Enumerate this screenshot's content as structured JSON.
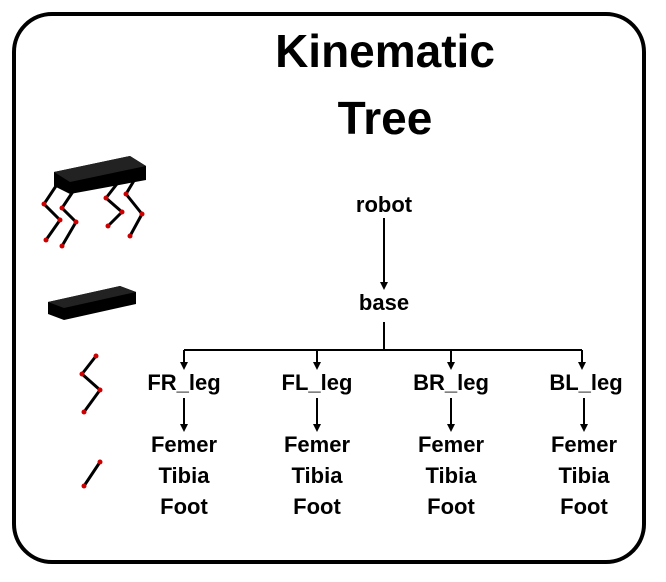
{
  "title": {
    "line1": "Kinematic",
    "line2": "Tree"
  },
  "tree": {
    "root": "robot",
    "base": "base",
    "legs": [
      {
        "name": "FR_leg",
        "parts": [
          "Femer",
          "Tibia",
          "Foot"
        ]
      },
      {
        "name": "FL_leg",
        "parts": [
          "Femer",
          "Tibia",
          "Foot"
        ]
      },
      {
        "name": "BR_leg",
        "parts": [
          "Femer",
          "Tibia",
          "Foot"
        ]
      },
      {
        "name": "BL_leg",
        "parts": [
          "Femer",
          "Tibia",
          "Foot"
        ]
      }
    ]
  },
  "colors": {
    "joint": "#cc0000",
    "line": "#000000"
  },
  "icons": [
    "quadruped-robot-icon",
    "base-body-icon",
    "leg-icon",
    "link-icon"
  ]
}
